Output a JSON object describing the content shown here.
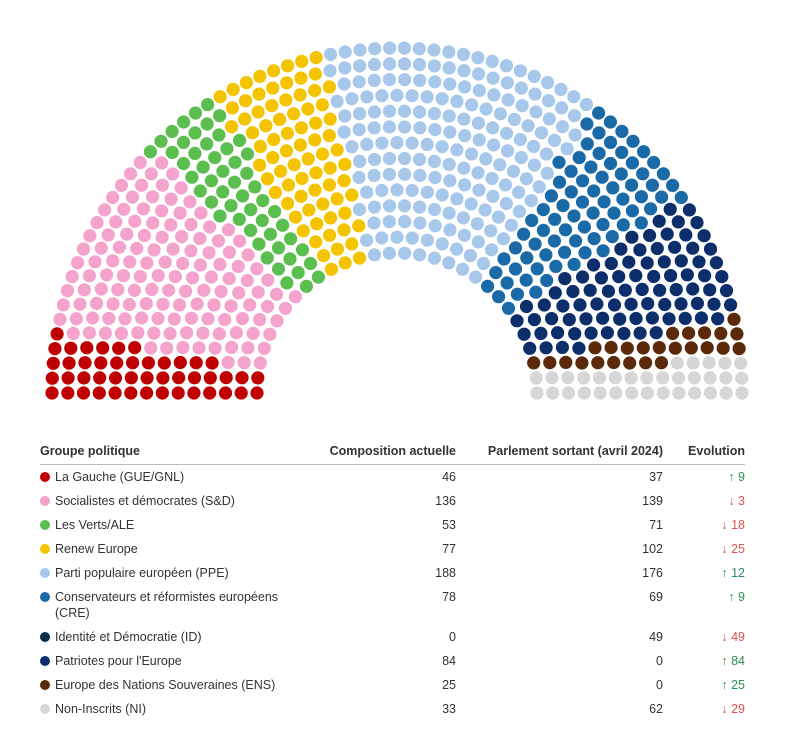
{
  "chart_data": {
    "type": "parliament",
    "category_label": "Groupe politique",
    "categories": [
      "La Gauche (GUE/GNL)",
      "Socialistes et démocrates (S&D)",
      "Les Verts/ALE",
      "Renew Europe",
      "Parti populaire européen (PPE)",
      "Conservateurs et réformistes européens (CRE)",
      "Identité et Démocratie (ID)",
      "Patriotes pour l'Europe",
      "Europe des Nations Souveraines (ENS)",
      "Non-Inscrits (NI)"
    ],
    "colors": [
      "#c00000",
      "#f4a3cc",
      "#5bbf50",
      "#f5c400",
      "#a7c8ea",
      "#1a6aa8",
      "#0d2b4a",
      "#0c2e6b",
      "#5a2a0a",
      "#d6d6d6"
    ],
    "series": [
      {
        "name": "Composition actuelle",
        "values": [
          46,
          136,
          53,
          77,
          188,
          78,
          0,
          84,
          25,
          33
        ]
      },
      {
        "name": "Parlement sortant (avril 2024)",
        "values": [
          37,
          139,
          71,
          102,
          176,
          69,
          49,
          0,
          0,
          62
        ]
      },
      {
        "name": "Evolution",
        "values": [
          9,
          -3,
          -18,
          -25,
          12,
          9,
          -49,
          84,
          25,
          -29
        ],
        "value_labels": [
          "↑ 9",
          "↓ 3",
          "↓ 18",
          "↓ 25",
          "↑ 12",
          "↑ 9",
          "↓ 49",
          "↑ 84",
          "↑ 25",
          "↓ 29"
        ]
      }
    ]
  }
}
